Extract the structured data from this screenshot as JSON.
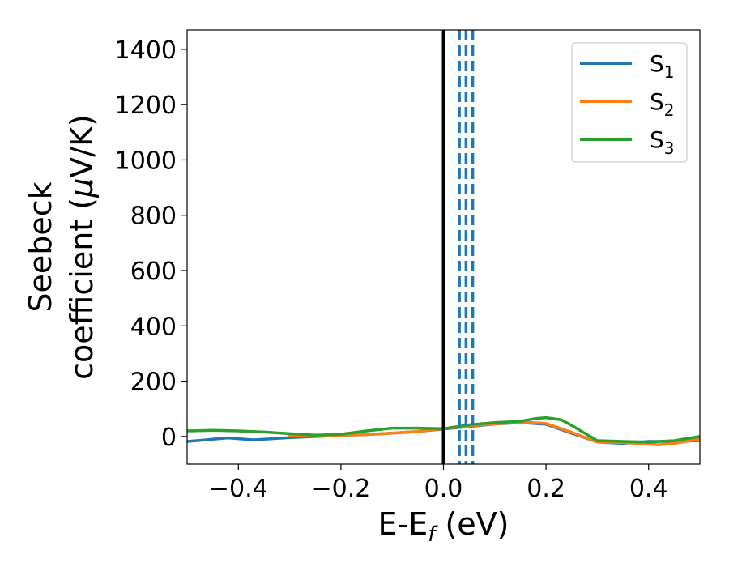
{
  "chart_data": {
    "type": "line",
    "title": "",
    "xlabel": "E-E",
    "xlabel_sub": "f",
    "xlabel_unit": " (eV)",
    "ylabel_line1": "Seebeck",
    "ylabel_line2": "coefficient  (",
    "ylabel_mu": "μ",
    "ylabel_unit": "V/K)",
    "xlim": [
      -0.5,
      0.5
    ],
    "ylim": [
      -100,
      1470
    ],
    "xticks": [
      -0.4,
      -0.2,
      0.0,
      0.2,
      0.4
    ],
    "xtick_labels": [
      "−0.4",
      "−0.2",
      "0.0",
      "0.2",
      "0.4"
    ],
    "yticks": [
      0,
      200,
      400,
      600,
      800,
      1000,
      1200,
      1400
    ],
    "ytick_labels": [
      "0",
      "200",
      "400",
      "600",
      "800",
      "1000",
      "1200",
      "1400"
    ],
    "grid": false,
    "legend_position": "top-right",
    "series": [
      {
        "name": "S",
        "subscript": "1",
        "color": "#1f77b4",
        "x": [
          -0.5,
          -0.45,
          -0.42,
          -0.4,
          -0.37,
          -0.35,
          -0.3,
          -0.25,
          -0.2,
          -0.15,
          -0.1,
          -0.05,
          0.0,
          0.05,
          0.1,
          0.15,
          0.2,
          0.25,
          0.3,
          0.35,
          0.4,
          0.45,
          0.5
        ],
        "y": [
          -18,
          -10,
          -5,
          -8,
          -12,
          -10,
          -4,
          0,
          4,
          7,
          12,
          18,
          27,
          36,
          45,
          50,
          44,
          12,
          -20,
          -25,
          -18,
          -18,
          -15
        ]
      },
      {
        "name": "S",
        "subscript": "2",
        "color": "#ff7f0e",
        "x": [
          -0.3,
          -0.25,
          -0.2,
          -0.15,
          -0.1,
          -0.05,
          0.0,
          0.05,
          0.1,
          0.15,
          0.2,
          0.25,
          0.3,
          0.35,
          0.4,
          0.42,
          0.45,
          0.5
        ],
        "y": [
          2,
          4,
          5,
          7,
          12,
          18,
          28,
          38,
          46,
          52,
          47,
          15,
          -20,
          -22,
          -28,
          -30,
          -25,
          -10
        ]
      },
      {
        "name": "S",
        "subscript": "3",
        "color": "#2ca02c",
        "x": [
          -0.5,
          -0.45,
          -0.4,
          -0.35,
          -0.3,
          -0.25,
          -0.2,
          -0.15,
          -0.1,
          -0.05,
          0.0,
          0.05,
          0.1,
          0.15,
          0.18,
          0.2,
          0.23,
          0.25,
          0.3,
          0.35,
          0.4,
          0.45,
          0.5
        ],
        "y": [
          20,
          22,
          20,
          16,
          10,
          5,
          8,
          20,
          30,
          30,
          28,
          42,
          50,
          55,
          65,
          68,
          60,
          40,
          -15,
          -18,
          -20,
          -15,
          0
        ]
      }
    ],
    "vlines": [
      {
        "x": 0.0,
        "color": "#000000",
        "style": "solid"
      },
      {
        "x": 0.031,
        "color": "#1f77b4",
        "style": "dashed"
      },
      {
        "x": 0.044,
        "color": "#1f77b4",
        "style": "dashed"
      },
      {
        "x": 0.057,
        "color": "#1f77b4",
        "style": "dashed"
      }
    ]
  }
}
